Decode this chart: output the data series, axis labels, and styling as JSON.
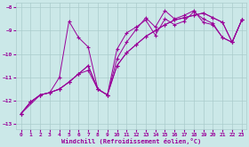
{
  "xlabel": "Windchill (Refroidissement éolien,°C)",
  "bg_color": "#cbe8e8",
  "grid_color": "#aacccc",
  "line_color": "#990099",
  "xlim": [
    -0.5,
    23.5
  ],
  "ylim": [
    -13.2,
    -7.8
  ],
  "yticks": [
    -13,
    -12,
    -11,
    -10,
    -9,
    -8
  ],
  "xticks": [
    0,
    1,
    2,
    3,
    4,
    5,
    6,
    7,
    8,
    9,
    10,
    11,
    12,
    13,
    14,
    15,
    16,
    17,
    18,
    19,
    20,
    21,
    22,
    23
  ],
  "series": [
    {
      "x": [
        0,
        1,
        2,
        3,
        4,
        5,
        6,
        7,
        8,
        9,
        10,
        11,
        12,
        13,
        14,
        15,
        16,
        17,
        18,
        19,
        20,
        21,
        22,
        23
      ],
      "y": [
        -12.55,
        -12.05,
        -11.75,
        -11.65,
        -11.0,
        -8.6,
        -9.3,
        -9.7,
        -11.5,
        -11.75,
        -9.8,
        -9.1,
        -8.85,
        -8.55,
        -9.2,
        -8.5,
        -8.75,
        -8.6,
        -8.2,
        -8.5,
        -8.7,
        -9.3,
        -9.5,
        -8.55
      ]
    },
    {
      "x": [
        0,
        1,
        2,
        3,
        4,
        5,
        6,
        7,
        8,
        9,
        10,
        11,
        12,
        13,
        14,
        15,
        16,
        17,
        18,
        19,
        20,
        21,
        22,
        23
      ],
      "y": [
        -12.55,
        -12.05,
        -11.75,
        -11.65,
        -11.5,
        -11.2,
        -10.85,
        -10.7,
        -11.5,
        -11.75,
        -10.5,
        -9.95,
        -9.6,
        -9.25,
        -9.0,
        -8.75,
        -8.55,
        -8.45,
        -8.35,
        -8.25,
        -8.45,
        -8.65,
        -9.5,
        -8.55
      ]
    },
    {
      "x": [
        0,
        2,
        3,
        4,
        5,
        6,
        7,
        8,
        9,
        10,
        11,
        12,
        13,
        14,
        15,
        16,
        17,
        18,
        19,
        20,
        21,
        22,
        23
      ],
      "y": [
        -12.55,
        -11.75,
        -11.65,
        -11.5,
        -11.2,
        -10.85,
        -10.5,
        -11.5,
        -11.75,
        -10.5,
        -9.95,
        -9.6,
        -9.25,
        -9.0,
        -8.75,
        -8.55,
        -8.45,
        -8.35,
        -8.25,
        -8.45,
        -8.65,
        -9.5,
        -8.55
      ]
    },
    {
      "x": [
        0,
        1,
        2,
        3,
        4,
        5,
        6,
        7,
        8,
        9,
        10,
        11,
        12,
        13,
        14,
        15,
        16,
        17,
        18,
        19,
        20,
        21,
        22,
        23
      ],
      "y": [
        -12.55,
        -12.05,
        -11.75,
        -11.65,
        -11.5,
        -11.2,
        -10.85,
        -10.5,
        -11.5,
        -11.75,
        -10.2,
        -9.5,
        -8.95,
        -8.45,
        -8.85,
        -8.15,
        -8.5,
        -8.35,
        -8.15,
        -8.65,
        -8.75,
        -9.3,
        -9.5,
        -8.55
      ]
    }
  ]
}
